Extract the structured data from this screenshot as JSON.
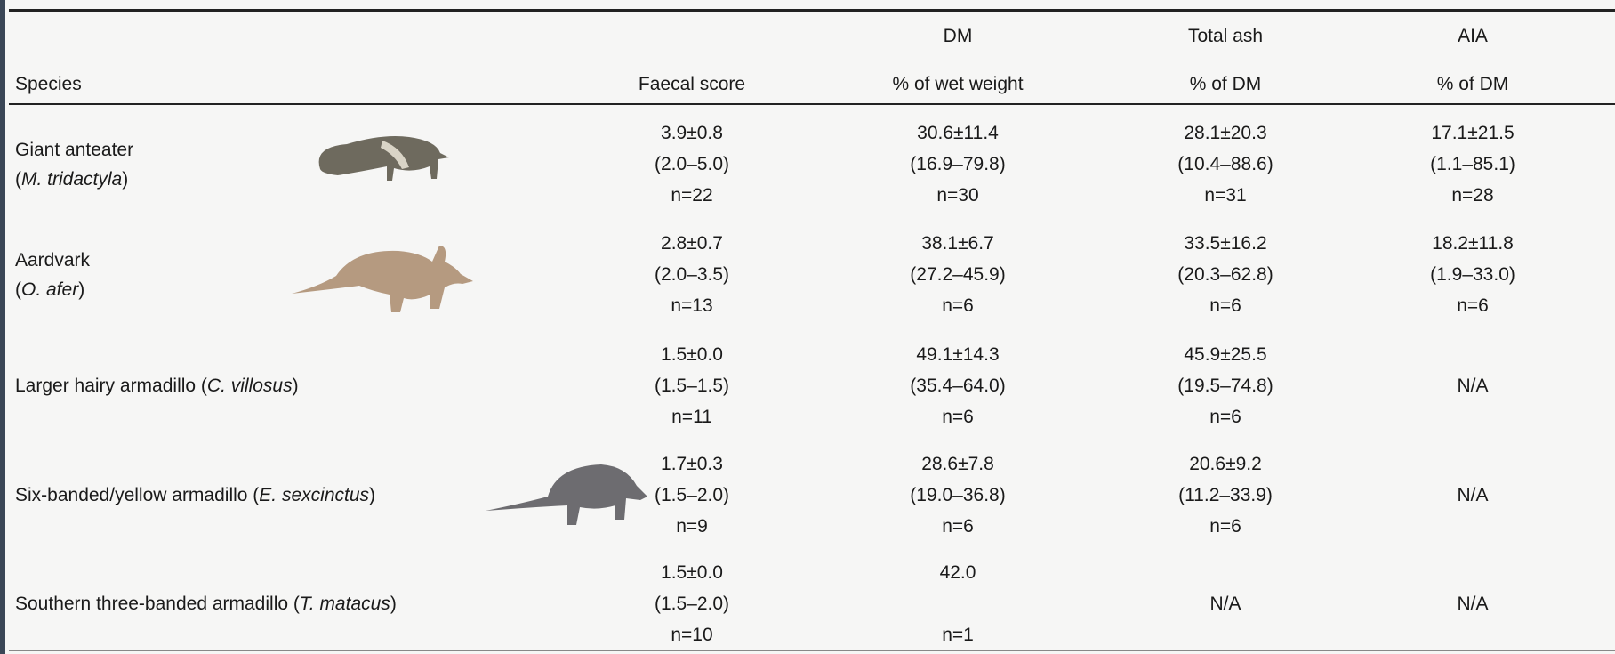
{
  "header": [
    [
      null,
      null,
      "DM",
      "Total ash",
      "AIA"
    ],
    [
      "Species",
      "Faecal score",
      "% of wet weight",
      "% of DM",
      "% of DM"
    ]
  ],
  "rows": [
    {
      "species": [
        [
          {
            "text": "Giant anteater"
          }
        ],
        [
          {
            "text": "("
          },
          {
            "text": "M. tridactyla",
            "italic": true
          },
          {
            "text": ")"
          }
        ]
      ],
      "cells": [
        [
          "3.9±0.8",
          "(2.0–5.0)",
          "n=22"
        ],
        [
          "30.6±11.4",
          "(16.9–79.8)",
          "n=30"
        ],
        [
          "28.1±20.3",
          "(10.4–88.6)",
          "n=31"
        ],
        [
          "17.1±21.5",
          "(1.1–85.1)",
          "n=28"
        ]
      ]
    },
    {
      "species": [
        [
          {
            "text": "Aardvark"
          }
        ],
        [
          {
            "text": "("
          },
          {
            "text": "O. afer",
            "italic": true
          },
          {
            "text": ")"
          }
        ]
      ],
      "cells": [
        [
          "2.8±0.7",
          "(2.0–3.5)",
          "n=13"
        ],
        [
          "38.1±6.7",
          "(27.2–45.9)",
          "n=6"
        ],
        [
          "33.5±16.2",
          "(20.3–62.8)",
          "n=6"
        ],
        [
          "18.2±11.8",
          "(1.9–33.0)",
          "n=6"
        ]
      ]
    },
    {
      "species": [
        [
          {
            "text": "Larger hairy armadillo ("
          },
          {
            "text": "C. villosus",
            "italic": true
          },
          {
            "text": ")"
          }
        ]
      ],
      "cells": [
        [
          "1.5±0.0",
          "(1.5–1.5)",
          "n=11"
        ],
        [
          "49.1±14.3",
          "(35.4–64.0)",
          "n=6"
        ],
        [
          "45.9±25.5",
          "(19.5–74.8)",
          "n=6"
        ],
        [
          "N/A"
        ]
      ]
    },
    {
      "species": [
        [
          {
            "text": "Six-banded/yellow armadillo ("
          },
          {
            "text": "E. sexcinctus",
            "italic": true
          },
          {
            "text": ")"
          }
        ]
      ],
      "cells": [
        [
          "1.7±0.3",
          "(1.5–2.0)",
          "n=9"
        ],
        [
          "28.6±7.8",
          "(19.0–36.8)",
          "n=6"
        ],
        [
          "20.6±9.2",
          "(11.2–33.9)",
          "n=6"
        ],
        [
          "N/A"
        ]
      ]
    },
    {
      "species": [
        [
          {
            "text": "Southern three-banded armadillo ("
          },
          {
            "text": "T. matacus",
            "italic": true
          },
          {
            "text": ")"
          }
        ]
      ],
      "cells": [
        [
          "1.5±0.0",
          "(1.5–2.0)",
          "n=10"
        ],
        [
          "42.0",
          null,
          "n=1"
        ],
        [
          "N/A"
        ],
        [
          "N/A"
        ]
      ]
    }
  ]
}
